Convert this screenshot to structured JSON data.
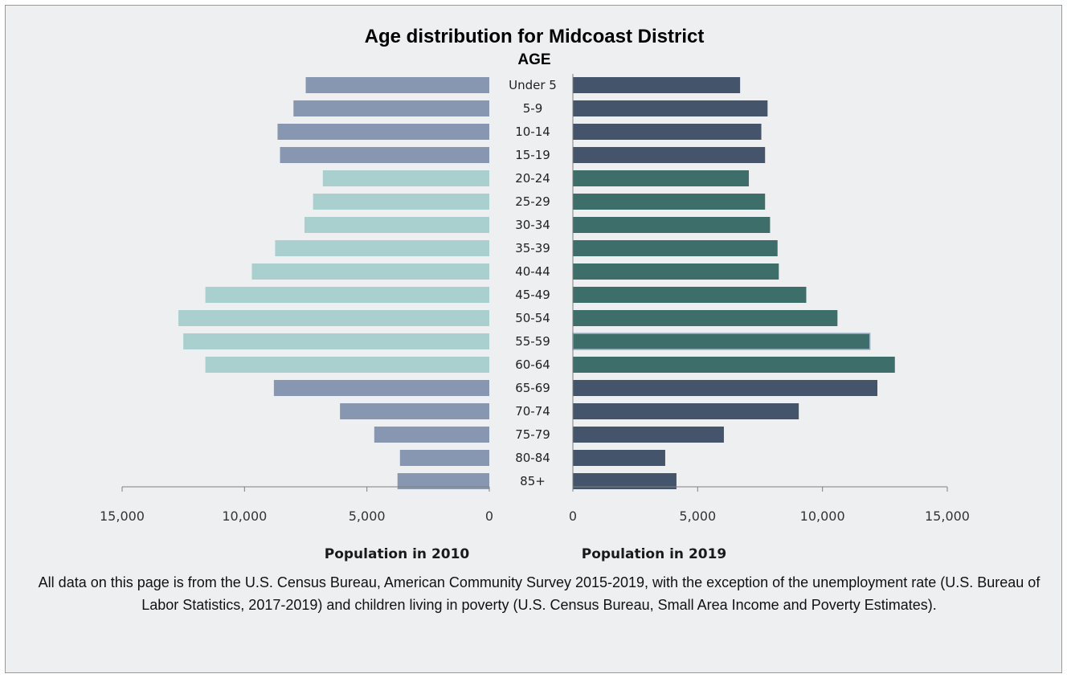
{
  "chart_data": {
    "type": "bar",
    "orientation": "horizontal",
    "title": "Age distribution for Midcoast District",
    "category_header": "AGE",
    "categories": [
      "Under 5",
      "5-9",
      "10-14",
      "15-19",
      "20-24",
      "25-29",
      "30-34",
      "35-39",
      "40-44",
      "45-49",
      "50-54",
      "55-59",
      "60-64",
      "65-69",
      "70-74",
      "75-79",
      "80-84",
      "85+"
    ],
    "series": [
      {
        "axis_label": "Population in 2010",
        "side": "left",
        "values": [
          7500,
          8000,
          8650,
          8550,
          6800,
          7200,
          7550,
          8750,
          9700,
          11600,
          12700,
          12500,
          11600,
          8800,
          6100,
          4700,
          3650,
          3750
        ]
      },
      {
        "axis_label": "Population in 2019",
        "side": "right",
        "values": [
          6700,
          7800,
          7550,
          7700,
          7050,
          7700,
          7900,
          8200,
          8250,
          9350,
          10600,
          11900,
          12900,
          12200,
          9050,
          6050,
          3700,
          4150
        ]
      }
    ],
    "xlim": [
      0,
      15000
    ],
    "ticks": [
      0,
      5000,
      10000,
      15000
    ],
    "tick_labels": [
      "0",
      "5,000",
      "10,000",
      "15,000"
    ],
    "colors": {
      "children_left": "#8797b2",
      "working_left": "#a9cfcf",
      "children_right": "#44546a",
      "working_right": "#3d6e6a",
      "highlight_border": "#9db3c8"
    },
    "color_groups": [
      "children",
      "children",
      "children",
      "children",
      "working",
      "working",
      "working",
      "working",
      "working",
      "working",
      "working",
      "working",
      "working",
      "children",
      "children",
      "children",
      "children",
      "children"
    ]
  },
  "footnote": "All data on this page is from the U.S. Census Bureau, American Community Survey 2015-2019, with the exception of the unemployment rate (U.S. Bureau of Labor Statistics, 2017-2019) and children living in poverty (U.S. Census Bureau, Small Area Income and Poverty Estimates)."
}
